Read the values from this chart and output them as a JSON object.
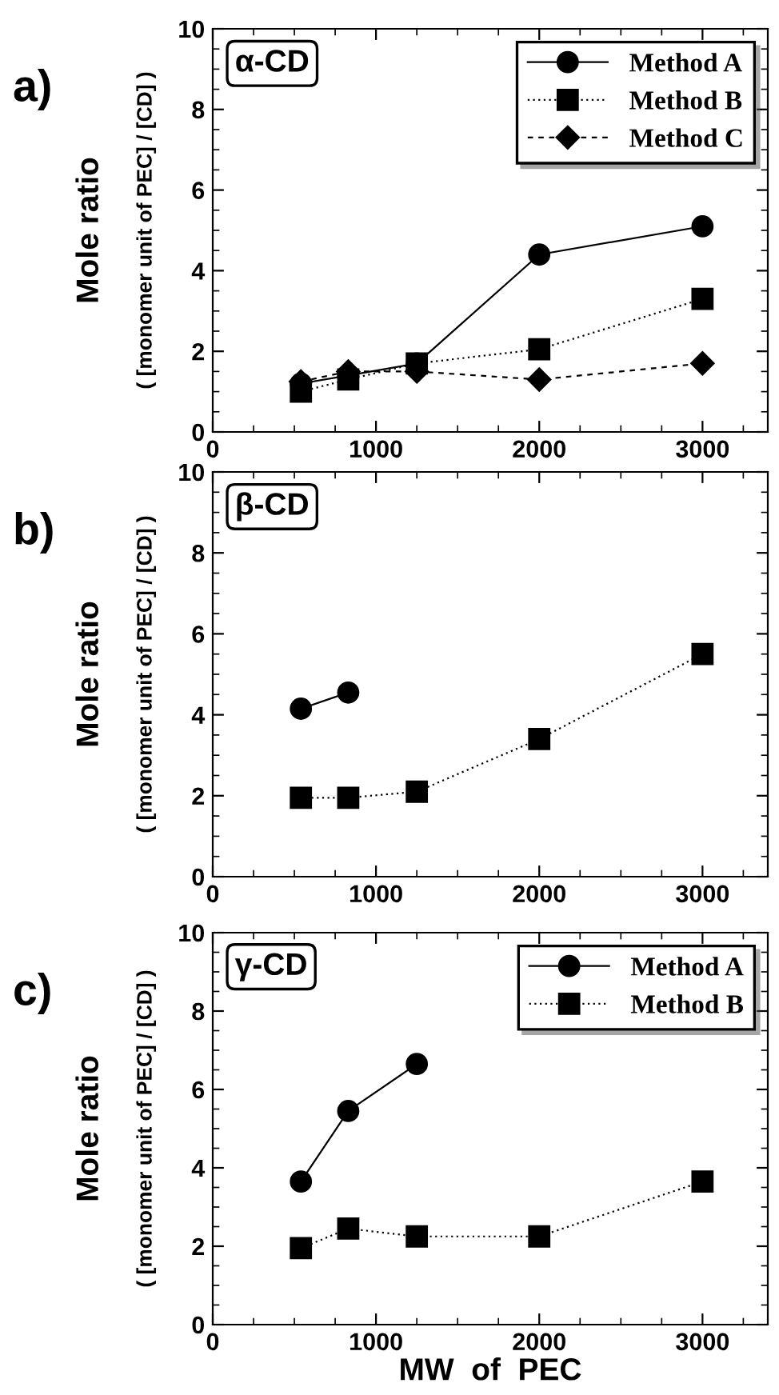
{
  "chart_data": [
    {
      "type": "line",
      "title": "α-CD",
      "ylabel": "Mole ratio",
      "annotations": [
        "a)",
        "( [monomer unit of PEC] / [CD] )"
      ],
      "xlim": [
        0,
        3400
      ],
      "xticks": [
        0,
        1000,
        2000,
        3000
      ],
      "ylim": [
        0,
        10
      ],
      "yticks": [
        0,
        2,
        4,
        6,
        8,
        10
      ],
      "legend": "top right",
      "grid": false,
      "series": [
        {
          "name": "Method A",
          "color": "#000000",
          "marker": "circle",
          "line_style": "solid",
          "x": [
            540,
            830,
            1250,
            2000,
            3000
          ],
          "values": [
            1.2,
            1.4,
            1.7,
            4.4,
            5.1
          ]
        },
        {
          "name": "Method B",
          "color": "#000000",
          "marker": "square",
          "line_style": "dotted",
          "x": [
            540,
            830,
            1250,
            2000,
            3000
          ],
          "values": [
            1.0,
            1.3,
            1.7,
            2.05,
            3.3
          ]
        },
        {
          "name": "Method C",
          "color": "#000000",
          "marker": "diamond",
          "line_style": "dashed",
          "x": [
            540,
            830,
            1250,
            2000,
            3000
          ],
          "values": [
            1.25,
            1.5,
            1.5,
            1.3,
            1.7
          ]
        }
      ]
    },
    {
      "type": "line",
      "title": "β-CD",
      "ylabel": "Mole ratio",
      "annotations": [
        "b)",
        "( [monomer unit of PEC] / [CD] )"
      ],
      "xlim": [
        0,
        3400
      ],
      "xticks": [
        0,
        1000,
        2000,
        3000
      ],
      "ylim": [
        0,
        10
      ],
      "yticks": [
        0,
        2,
        4,
        6,
        8,
        10
      ],
      "grid": false,
      "series": [
        {
          "color": "#000000",
          "marker": "circle",
          "line_style": "solid",
          "x": [
            540,
            830
          ],
          "values": [
            4.15,
            4.55
          ]
        },
        {
          "color": "#000000",
          "marker": "square",
          "line_style": "dotted",
          "x": [
            540,
            830,
            1250,
            2000,
            3000
          ],
          "values": [
            1.95,
            1.95,
            2.1,
            3.4,
            5.5
          ]
        }
      ]
    },
    {
      "type": "line",
      "title": "γ-CD",
      "xlabel": "MW  of  PEC",
      "ylabel": "Mole ratio",
      "annotations": [
        "c)",
        "( [monomer unit of PEC] / [CD] )"
      ],
      "xlim": [
        0,
        3400
      ],
      "xticks": [
        0,
        1000,
        2000,
        3000
      ],
      "ylim": [
        0,
        10
      ],
      "yticks": [
        0,
        2,
        4,
        6,
        8,
        10
      ],
      "legend": "top right",
      "grid": false,
      "series": [
        {
          "name": "Method A",
          "color": "#000000",
          "marker": "circle",
          "line_style": "solid",
          "x": [
            540,
            830,
            1250
          ],
          "values": [
            3.65,
            5.45,
            6.65
          ]
        },
        {
          "name": "Method B",
          "color": "#000000",
          "marker": "square",
          "line_style": "dotted",
          "x": [
            540,
            830,
            1250,
            2000,
            3000
          ],
          "values": [
            1.95,
            2.45,
            2.25,
            2.25,
            3.65
          ]
        }
      ]
    }
  ]
}
